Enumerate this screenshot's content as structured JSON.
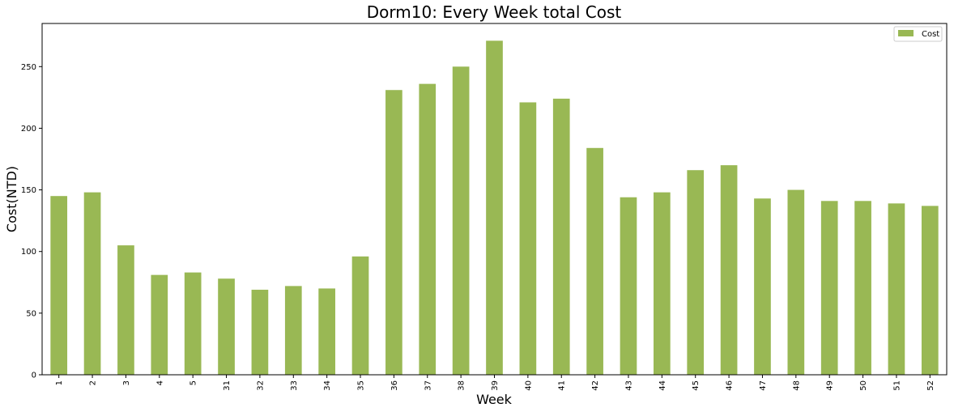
{
  "chart_data": {
    "type": "bar",
    "title": "Dorm10: Every Week total Cost",
    "xlabel": "Week",
    "ylabel": "Cost(NTD)",
    "categories": [
      "1",
      "2",
      "3",
      "4",
      "5",
      "31",
      "32",
      "33",
      "34",
      "35",
      "36",
      "37",
      "38",
      "39",
      "40",
      "41",
      "42",
      "43",
      "44",
      "45",
      "46",
      "47",
      "48",
      "49",
      "50",
      "51",
      "52"
    ],
    "series": [
      {
        "name": "Cost",
        "color": "#99b854",
        "values": [
          145,
          148,
          105,
          81,
          83,
          78,
          69,
          72,
          70,
          96,
          231,
          236,
          250,
          271,
          221,
          224,
          184,
          144,
          148,
          166,
          170,
          143,
          150,
          141,
          141,
          139,
          137
        ]
      }
    ],
    "ylim": [
      0,
      285
    ],
    "yticks": [
      0,
      50,
      100,
      150,
      200,
      250
    ],
    "legend_position": "top-right",
    "grid": false
  }
}
